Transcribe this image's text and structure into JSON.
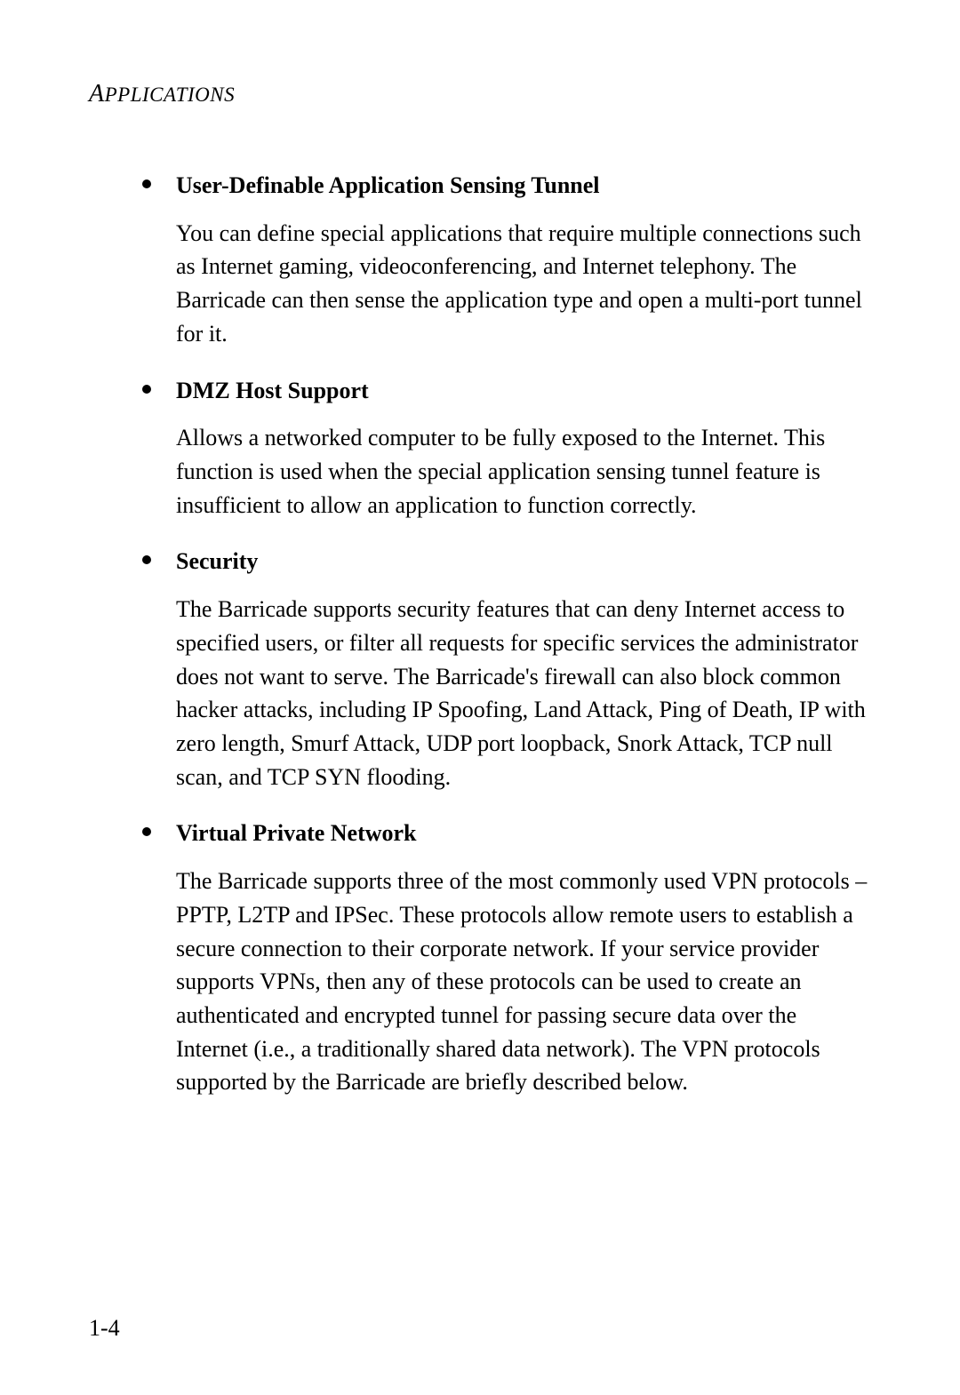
{
  "header": {
    "first_letter": "A",
    "rest": "PPLICATIONS"
  },
  "features": [
    {
      "heading": "User-Definable Application Sensing Tunnel",
      "body": "You can define special applications that require multiple connections such as Internet gaming, videoconferencing, and Internet telephony. The Barricade can then sense the application type and open a multi-port tunnel for it."
    },
    {
      "heading": "DMZ Host Support",
      "body": "Allows a networked computer to be fully exposed to the Internet. This function is used when the special application sensing tunnel feature is insufficient to allow an application to function correctly."
    },
    {
      "heading": "Security",
      "body": "The Barricade supports security features that can deny Internet access to specified users, or filter all requests for specific services the administrator does not want to serve. The Barricade's firewall can also block common hacker attacks, including IP Spoofing, Land Attack, Ping of Death, IP with zero length, Smurf Attack, UDP port loopback, Snork Attack, TCP null scan, and TCP SYN flooding."
    },
    {
      "heading": "Virtual Private Network",
      "body": "The Barricade supports three of the most commonly used VPN protocols – PPTP, L2TP and IPSec. These protocols allow remote users to establish a secure connection to their corporate network. If your service provider supports VPNs, then any of these protocols can be used to create an authenticated and encrypted tunnel for passing secure data over the Internet (i.e., a traditionally shared data network). The VPN protocols supported by the Barricade are briefly described below."
    }
  ],
  "page_number": "1-4"
}
